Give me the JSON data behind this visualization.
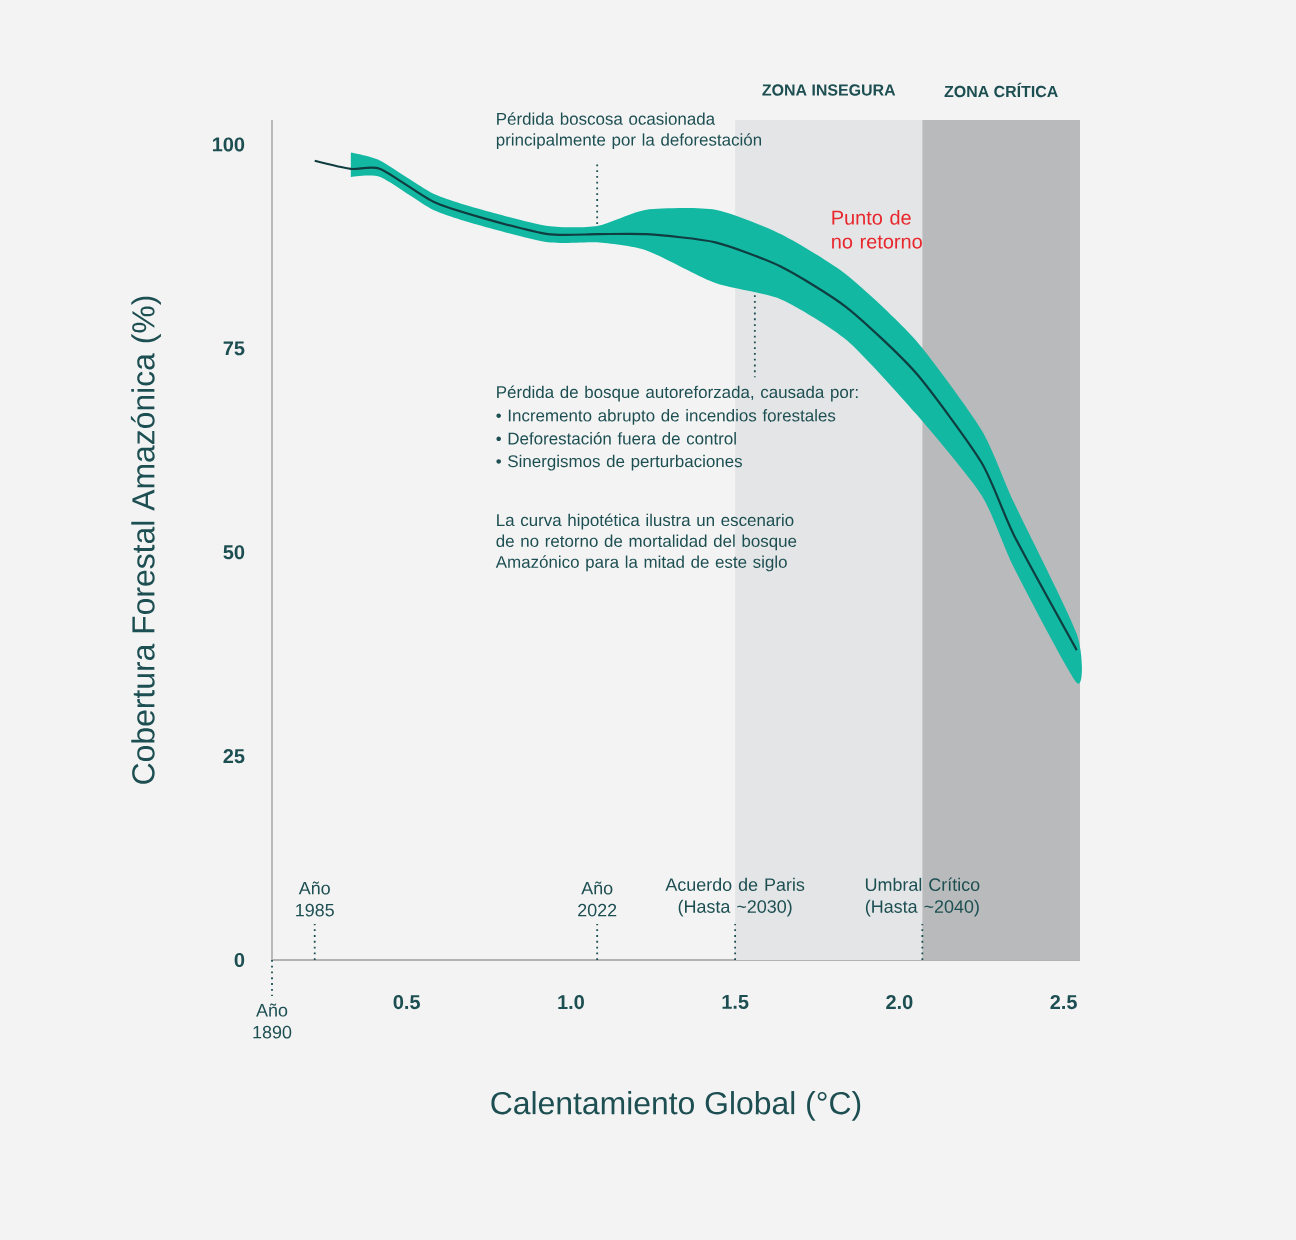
{
  "chart_data": {
    "type": "line",
    "xlabel": "Calentamiento Global (°C)",
    "ylabel": "Cobertura Forestal Amazónica (%)",
    "x": [
      0.22,
      0.33,
      0.42,
      0.58,
      0.73,
      0.93,
      1.08,
      1.23,
      1.44,
      1.64,
      1.84,
      2.05,
      2.25,
      2.35,
      2.54
    ],
    "series": [
      {
        "color": "#0f3d40",
        "values": [
          98,
          97,
          97,
          93,
          91,
          89,
          89,
          89,
          88,
          85,
          80,
          72,
          61,
          52,
          38
        ],
        "lower": [
          null,
          96,
          96,
          92,
          90,
          88,
          88,
          87,
          83,
          81,
          76,
          67,
          57,
          48,
          34
        ],
        "upper": [
          null,
          99,
          98,
          94,
          92,
          90,
          90,
          92,
          92,
          89,
          84,
          76,
          65,
          56,
          40
        ]
      }
    ],
    "xlim": [
      0.09,
      2.55
    ],
    "ylim": [
      0,
      103
    ],
    "xticks": [
      0.5,
      {
        "value": 1,
        "label": "1.0"
      },
      1.5,
      {
        "value": 2,
        "label": "2.0"
      },
      2.5
    ],
    "yticks": [
      0,
      25,
      50,
      75,
      100
    ],
    "line_style": "solid",
    "bands": [
      {
        "axis": "x",
        "from": 1.5,
        "to": 2.07,
        "label": "ZONA INSEGURA",
        "color": "#e4e5e6"
      },
      {
        "axis": "x",
        "from": 2.07,
        "to": 2.55,
        "label": "ZONA CRÍTICA",
        "color": "#b9babb"
      }
    ],
    "ref_lines": [
      {
        "axis": "x",
        "value": 0.09,
        "label": "Año 1890",
        "line_style": "dotted"
      },
      {
        "axis": "x",
        "value": 0.22,
        "label": "Año 1985",
        "line_style": "dotted"
      },
      {
        "axis": "x",
        "value": 1.08,
        "label": "Año 2022",
        "line_style": "dotted"
      },
      {
        "axis": "x",
        "value": 1.5,
        "label": "Acuerdo de Paris (Hasta ~2030)",
        "line_style": "dotted"
      },
      {
        "axis": "x",
        "value": 2.07,
        "label": "Umbral Crítico (Hasta ~2040)",
        "line_style": "dotted"
      }
    ],
    "annotations": [
      {
        "text": "Pérdida boscosa ocasionada principalmente por la deforestación",
        "x": 1.08,
        "y": 90
      },
      {
        "text": "Pérdida de bosque autoreforzada, causada por:",
        "x": 1.56,
        "y": 82
      },
      "• Incremento abrupto de incendios forestales",
      "• Deforestación fuera de control",
      "• Sinergismos de perturbaciones",
      "La curva hipotética ilustra un escenario de no retorno de mortalidad del bosque Amazónico para la mitad de este siglo",
      "Punto de no retorno"
    ]
  }
}
